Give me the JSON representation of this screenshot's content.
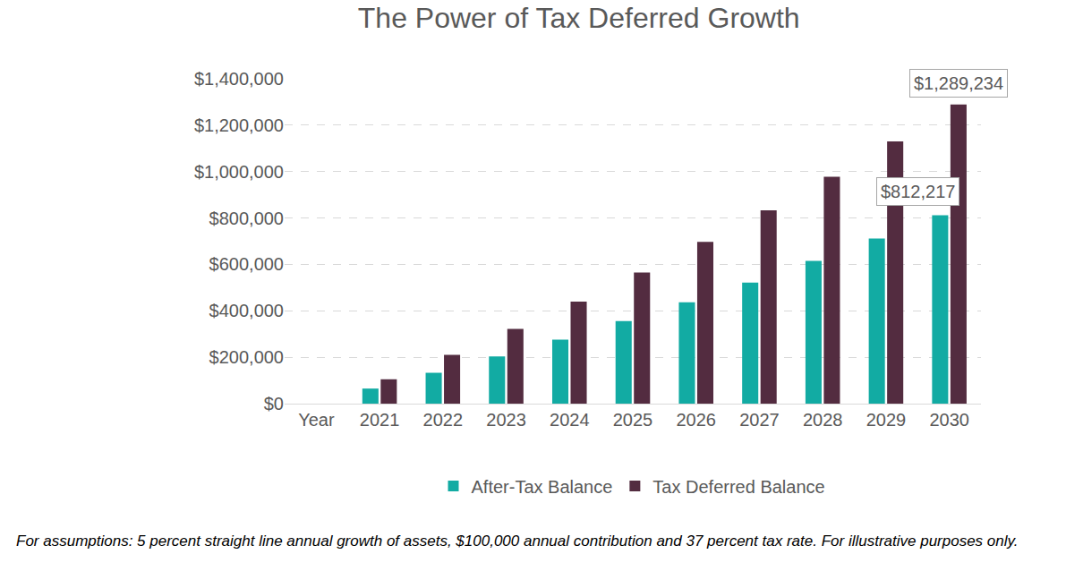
{
  "chart_data": {
    "type": "bar",
    "title": "The Power of Tax Deferred Growth",
    "categories": [
      "Year",
      "2021",
      "2022",
      "2023",
      "2024",
      "2025",
      "2026",
      "2027",
      "2028",
      "2029",
      "2030"
    ],
    "series": [
      {
        "name": "After-Tax Balance",
        "color": "#12aba3",
        "values": [
          null,
          65000,
          133000,
          203000,
          276000,
          356000,
          437000,
          522000,
          615000,
          712000,
          812217
        ],
        "value_labels": [
          null,
          null,
          null,
          null,
          null,
          null,
          null,
          null,
          null,
          null,
          "$812,217"
        ]
      },
      {
        "name": "Tax Deferred Balance",
        "color": "#532c40",
        "values": [
          null,
          105000,
          210000,
          322000,
          440000,
          565000,
          697000,
          833000,
          978000,
          1130000,
          1289234
        ],
        "value_labels": [
          null,
          null,
          null,
          null,
          null,
          null,
          null,
          null,
          null,
          null,
          "$1,289,234"
        ]
      }
    ],
    "ylim": [
      0,
      1400000
    ],
    "yticks": [
      {
        "value": 0,
        "label": "$0"
      },
      {
        "value": 200000,
        "label": "$200,000"
      },
      {
        "value": 400000,
        "label": "$400,000"
      },
      {
        "value": 600000,
        "label": "$600,000"
      },
      {
        "value": 800000,
        "label": "$800,000"
      },
      {
        "value": 1000000,
        "label": "$1,000,000"
      },
      {
        "value": 1200000,
        "label": "$1,200,000"
      },
      {
        "value": 1400000,
        "label": "$1,400,000"
      }
    ],
    "grid": true,
    "legend": "bottom",
    "data_labels": true,
    "footnote": "For assumptions: 5 percent straight line annual growth of assets, $100,000 annual contribution and 37 percent tax rate. For illustrative purposes only."
  }
}
